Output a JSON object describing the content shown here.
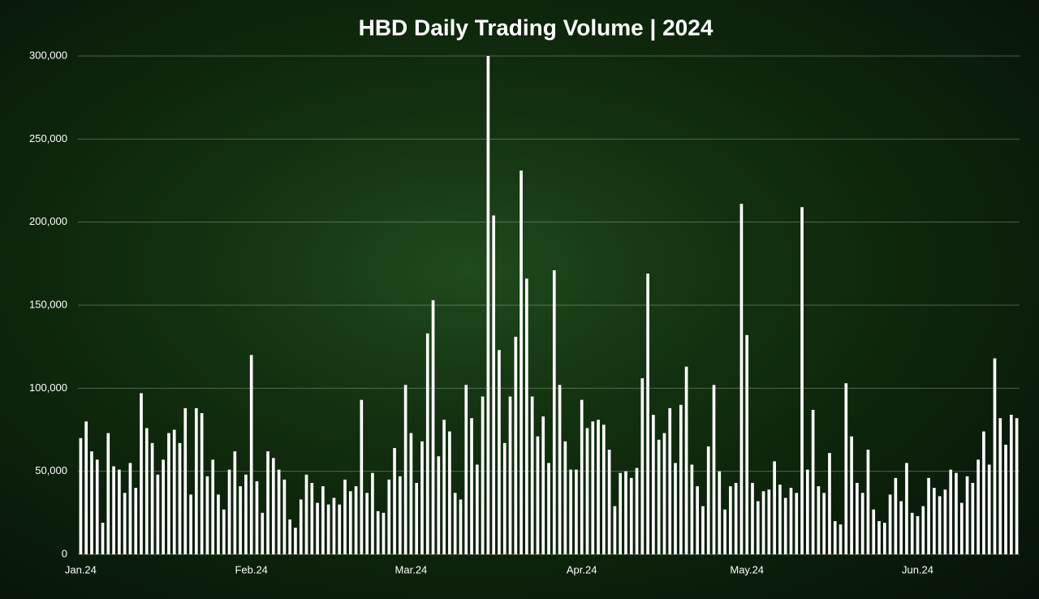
{
  "chart_data": {
    "type": "bar",
    "title": "HBD Daily Trading Volume | 2024",
    "categories": [
      "Jan.24",
      null,
      null,
      null,
      null,
      null,
      null,
      null,
      null,
      null,
      null,
      null,
      null,
      null,
      null,
      null,
      null,
      null,
      null,
      null,
      null,
      null,
      null,
      null,
      null,
      null,
      null,
      null,
      null,
      null,
      null,
      "Feb.24",
      null,
      null,
      null,
      null,
      null,
      null,
      null,
      null,
      null,
      null,
      null,
      null,
      null,
      null,
      null,
      null,
      null,
      null,
      null,
      null,
      null,
      null,
      null,
      null,
      null,
      null,
      null,
      null,
      "Mar.24",
      null,
      null,
      null,
      null,
      null,
      null,
      null,
      null,
      null,
      null,
      null,
      null,
      null,
      null,
      null,
      null,
      null,
      null,
      null,
      null,
      null,
      null,
      null,
      null,
      null,
      null,
      null,
      null,
      null,
      null,
      "Apr.24",
      null,
      null,
      null,
      null,
      null,
      null,
      null,
      null,
      null,
      null,
      null,
      null,
      null,
      null,
      null,
      null,
      null,
      null,
      null,
      null,
      null,
      null,
      null,
      null,
      null,
      null,
      null,
      null,
      null,
      "May.24",
      null,
      null,
      null,
      null,
      null,
      null,
      null,
      null,
      null,
      null,
      null,
      null,
      null,
      null,
      null,
      null,
      null,
      null,
      null,
      null,
      null,
      null,
      null,
      null,
      null,
      null,
      null,
      null,
      null,
      null,
      "Jun.24",
      null,
      null,
      null,
      null,
      null,
      null,
      null,
      null,
      null,
      null,
      null,
      null,
      null,
      null,
      null,
      null,
      null,
      null
    ],
    "values": [
      70000,
      80000,
      62000,
      57000,
      19000,
      73000,
      53000,
      51000,
      37000,
      55000,
      40000,
      97000,
      76000,
      67000,
      48000,
      57000,
      73000,
      75000,
      67000,
      88000,
      36000,
      88000,
      85000,
      47000,
      57000,
      36000,
      27000,
      51000,
      62000,
      41000,
      48000,
      120000,
      44000,
      25000,
      62000,
      58000,
      51000,
      45000,
      21000,
      16000,
      33000,
      48000,
      43000,
      31000,
      41000,
      30000,
      34000,
      30000,
      45000,
      38000,
      41000,
      93000,
      37000,
      49000,
      26000,
      25000,
      45000,
      64000,
      47000,
      102000,
      73000,
      43000,
      68000,
      133000,
      153000,
      59000,
      81000,
      74000,
      37000,
      33000,
      102000,
      82000,
      54000,
      95000,
      300000,
      204000,
      123000,
      67000,
      95000,
      131000,
      231000,
      166000,
      95000,
      71000,
      83000,
      55000,
      171000,
      102000,
      68000,
      51000,
      51000,
      93000,
      76000,
      80000,
      81000,
      78000,
      63000,
      29000,
      49000,
      50000,
      46000,
      52000,
      106000,
      169000,
      84000,
      69000,
      73000,
      88000,
      55000,
      90000,
      113000,
      54000,
      41000,
      29000,
      65000,
      102000,
      50000,
      27000,
      41000,
      43000,
      211000,
      132000,
      43000,
      32000,
      38000,
      39000,
      56000,
      42000,
      34000,
      40000,
      37000,
      209000,
      51000,
      87000,
      41000,
      37000,
      61000,
      20000,
      18000,
      103000,
      71000,
      43000,
      37000,
      63000,
      27000,
      20000,
      19000,
      36000,
      46000,
      32000,
      55000,
      25000,
      23000,
      29000,
      46000,
      40000,
      35000,
      39000,
      51000,
      49000,
      31000,
      47000,
      43000,
      57000,
      74000,
      54000,
      118000,
      82000,
      66000,
      84000,
      82000
    ],
    "color": "#ffffff",
    "ylim": [
      0,
      300000
    ],
    "yticks": [
      0,
      {
        "value": 50000,
        "label": "50,000"
      },
      {
        "value": 100000,
        "label": "100,000"
      },
      {
        "value": 150000,
        "label": "150,000"
      },
      {
        "value": 200000,
        "label": "200,000"
      },
      {
        "value": 250000,
        "label": "250,000"
      },
      {
        "value": 300000,
        "label": "300,000"
      }
    ],
    "grid": true
  }
}
